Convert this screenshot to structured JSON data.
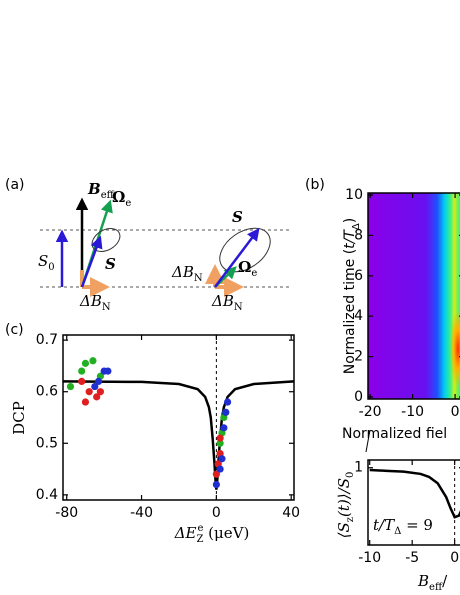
{
  "panel_labels": [
    "(a)",
    "(b)",
    "(c)"
  ],
  "diagram": {
    "b_eff": [
      {
        "text": "B",
        "style": "bold-italic"
      },
      {
        "text": "eff",
        "pos": "sub"
      }
    ],
    "omega_left": [
      {
        "text": "Ω",
        "style": "bold"
      },
      {
        "text": "e",
        "pos": "sub"
      }
    ],
    "s_left": [
      {
        "text": "S",
        "style": "bold-italic"
      }
    ],
    "s0": [
      {
        "text": "S",
        "style": "italic"
      },
      {
        "text": "0",
        "pos": "sub"
      }
    ],
    "dbn_left": [
      {
        "text": "ΔB",
        "style": "italic"
      },
      {
        "text": "N",
        "pos": "sub"
      }
    ],
    "s_right": [
      {
        "text": "S",
        "style": "bold-italic"
      }
    ],
    "omega_right": [
      {
        "text": "Ω",
        "style": "bold"
      },
      {
        "text": "e",
        "pos": "sub"
      }
    ],
    "dbn_right_up": [
      {
        "text": "ΔB",
        "style": "italic"
      },
      {
        "text": "N",
        "pos": "sub"
      }
    ],
    "dbn_right": [
      {
        "text": "ΔB",
        "style": "italic"
      },
      {
        "text": "N",
        "pos": "sub"
      }
    ]
  },
  "chart_data": [
    {
      "type": "scatter",
      "xlabel": [
        {
          "text": "ΔE",
          "style": "italic"
        },
        {
          "text": "Z",
          "pos": "sub"
        },
        {
          "text": "e",
          "pos": "sup"
        },
        {
          "text": " (μeV)"
        }
      ],
      "ylabel": [
        {
          "text": "DCP"
        }
      ],
      "xlim": [
        -82,
        41.5
      ],
      "ylim": [
        0.39,
        0.71
      ],
      "xticks": [
        -80,
        -40,
        0,
        40
      ],
      "yticks": [
        0.4,
        0.5,
        0.6,
        0.7
      ],
      "vline": 0,
      "series": [
        {
          "type": "line",
          "color": "#000000",
          "x": [
            -82,
            -40,
            -20,
            -10,
            -6,
            -4,
            -3,
            -2,
            -1,
            -0.5,
            0,
            0.5,
            1,
            2,
            3,
            4,
            6,
            10,
            20,
            41.5
          ],
          "values": [
            0.62,
            0.619,
            0.615,
            0.605,
            0.59,
            0.57,
            0.55,
            0.51,
            0.46,
            0.43,
            0.41,
            0.43,
            0.46,
            0.51,
            0.55,
            0.57,
            0.59,
            0.605,
            0.615,
            0.62
          ]
        },
        {
          "type": "scatter",
          "color": "#22b022",
          "x": [
            -78,
            -70,
            -66,
            -72,
            -62,
            2,
            3,
            4,
            5
          ],
          "values": [
            0.61,
            0.655,
            0.66,
            0.64,
            0.63,
            0.5,
            0.52,
            0.55,
            0.56
          ]
        },
        {
          "type": "scatter",
          "color": "#e02020",
          "x": [
            -72,
            -68,
            -64,
            -70,
            -62,
            0,
            1,
            2,
            2
          ],
          "values": [
            0.62,
            0.6,
            0.59,
            0.58,
            0.6,
            0.44,
            0.46,
            0.48,
            0.51
          ]
        },
        {
          "type": "scatter",
          "color": "#2030d0",
          "x": [
            -60,
            -63,
            -65,
            -58,
            0,
            2,
            3,
            4,
            5,
            6
          ],
          "values": [
            0.64,
            0.62,
            0.61,
            0.64,
            0.42,
            0.45,
            0.47,
            0.53,
            0.56,
            0.58
          ]
        }
      ]
    },
    {
      "type": "heatmap",
      "xlabel": [
        {
          "text": "Normalized fiel"
        }
      ],
      "ylabel": [
        {
          "text": "Normalized time ("
        },
        {
          "text": "t/T",
          "style": "italic"
        },
        {
          "text": "Δ",
          "pos": "sub"
        },
        {
          "text": ")"
        }
      ],
      "xlim": [
        -20.5,
        2.1
      ],
      "ylim": [
        -0.1,
        10.1
      ],
      "xticks": [
        -20,
        -10,
        0
      ],
      "yticks": [
        0,
        2,
        4,
        6,
        8,
        10
      ]
    },
    {
      "type": "line",
      "xlabel": [
        {
          "text": "B",
          "style": "italic"
        },
        {
          "text": "eff",
          "pos": "sub"
        },
        {
          "text": "/"
        }
      ],
      "ylabel": [
        {
          "text": "⟨S",
          "style": "italic"
        },
        {
          "text": "z",
          "pos": "sub"
        },
        {
          "text": "(t)⟩/S",
          "style": "italic"
        },
        {
          "text": "0",
          "pos": "sub"
        }
      ],
      "annotation": [
        {
          "text": "t/T",
          "style": "italic"
        },
        {
          "text": "Δ",
          "pos": "sub"
        },
        {
          "text": " = 9"
        }
      ],
      "xlim": [
        -10.2,
        1.1
      ],
      "ylim": [
        0,
        1.1
      ],
      "xticks": [
        -10,
        -5,
        0
      ],
      "yticks": [
        1
      ],
      "vline": 0,
      "series": [
        {
          "color": "#000000",
          "x": [
            -10,
            -8,
            -6,
            -4,
            -3,
            -2,
            -1,
            -0.5,
            0,
            0.5,
            1
          ],
          "values": [
            0.97,
            0.96,
            0.95,
            0.92,
            0.88,
            0.8,
            0.62,
            0.48,
            0.36,
            0.38,
            0.5
          ]
        }
      ]
    }
  ]
}
